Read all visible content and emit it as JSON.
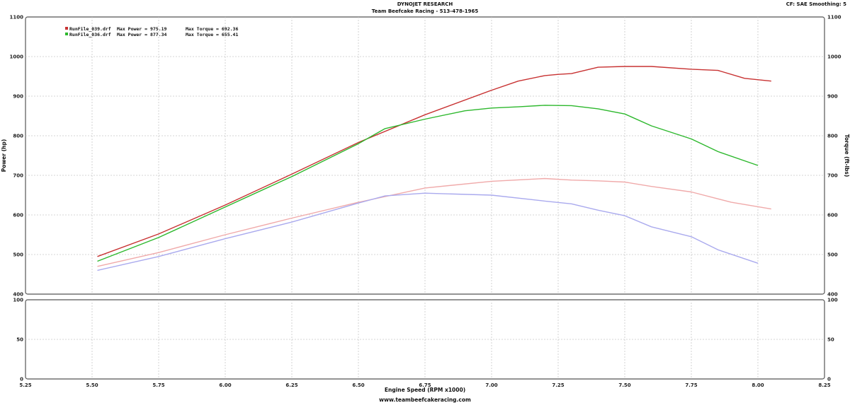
{
  "header": {
    "title": "DYNOJET RESEARCH",
    "subtitle": "Team Beefcake Racing - 513-478-1965",
    "settings": "CF: SAE  Smoothing: 5",
    "footer": "www.teambeefcakeracing.com"
  },
  "legend": [
    {
      "file": "RunFile_039.drf",
      "power_text": "Max Power = 975.19",
      "torque_text": "Max Torque = 692.36",
      "color": "#c83232"
    },
    {
      "file": "RunFile_036.drf",
      "power_text": "Max Power = 877.34",
      "torque_text": "Max Torque = 655.41",
      "color": "#2db82d"
    }
  ],
  "chart_data": [
    {
      "type": "line",
      "title": "",
      "xlabel": "Engine Speed (RPM x1000)",
      "ylabel": "Power (hp)",
      "y2label": "Torque (ft-lbs)",
      "xlim": [
        5.25,
        8.25
      ],
      "ylim": [
        400,
        1100
      ],
      "x_ticks": [
        5.25,
        5.5,
        5.75,
        6.0,
        6.25,
        6.5,
        6.75,
        7.0,
        7.25,
        7.5,
        7.75,
        8.0,
        8.25
      ],
      "x_tick_labels": [
        "5.25",
        "5.50",
        "5.75",
        "6.00",
        "6.25",
        "6.50",
        "6.75",
        "7.00",
        "7.25",
        "7.50",
        "7.75",
        "8.00",
        "8.25"
      ],
      "y_ticks": [
        400,
        500,
        600,
        700,
        800,
        900,
        1000,
        1100
      ],
      "grid": true,
      "legend_position": "top-left",
      "series": [
        {
          "name": "RunFile_039.drf Power",
          "color": "#c83232",
          "x": [
            5.52,
            5.75,
            6.0,
            6.25,
            6.5,
            6.75,
            7.0,
            7.1,
            7.2,
            7.25,
            7.3,
            7.4,
            7.5,
            7.6,
            7.75,
            7.85,
            7.95,
            8.05
          ],
          "y": [
            495,
            552,
            625,
            703,
            783,
            853,
            915,
            938,
            952,
            955,
            957,
            973,
            975,
            975,
            968,
            965,
            945,
            938
          ]
        },
        {
          "name": "RunFile_036.drf Power",
          "color": "#2db82d",
          "x": [
            5.52,
            5.75,
            6.0,
            6.25,
            6.5,
            6.6,
            6.75,
            6.9,
            7.0,
            7.1,
            7.2,
            7.3,
            7.4,
            7.5,
            7.6,
            7.75,
            7.85,
            8.0
          ],
          "y": [
            483,
            543,
            620,
            697,
            780,
            818,
            842,
            863,
            870,
            873,
            877,
            876,
            868,
            855,
            825,
            792,
            760,
            725
          ]
        },
        {
          "name": "RunFile_039.drf Torque",
          "color": "#f0aaaa",
          "x": [
            5.52,
            5.75,
            6.0,
            6.25,
            6.5,
            6.75,
            7.0,
            7.2,
            7.3,
            7.4,
            7.5,
            7.6,
            7.75,
            7.9,
            8.05
          ],
          "y": [
            470,
            505,
            550,
            592,
            632,
            668,
            685,
            692,
            688,
            686,
            683,
            672,
            658,
            632,
            615
          ]
        },
        {
          "name": "RunFile_036.drf Torque",
          "color": "#aaaaee",
          "x": [
            5.52,
            5.75,
            6.0,
            6.25,
            6.5,
            6.6,
            6.75,
            7.0,
            7.2,
            7.3,
            7.4,
            7.5,
            7.6,
            7.75,
            7.85,
            8.0
          ],
          "y": [
            460,
            495,
            540,
            582,
            630,
            648,
            655,
            650,
            635,
            628,
            612,
            598,
            570,
            545,
            512,
            478
          ]
        }
      ]
    },
    {
      "type": "line",
      "title": "",
      "xlim": [
        5.25,
        8.25
      ],
      "ylim": [
        0,
        100
      ],
      "y_ticks": [
        0,
        50,
        100
      ],
      "grid": true,
      "series": []
    }
  ]
}
